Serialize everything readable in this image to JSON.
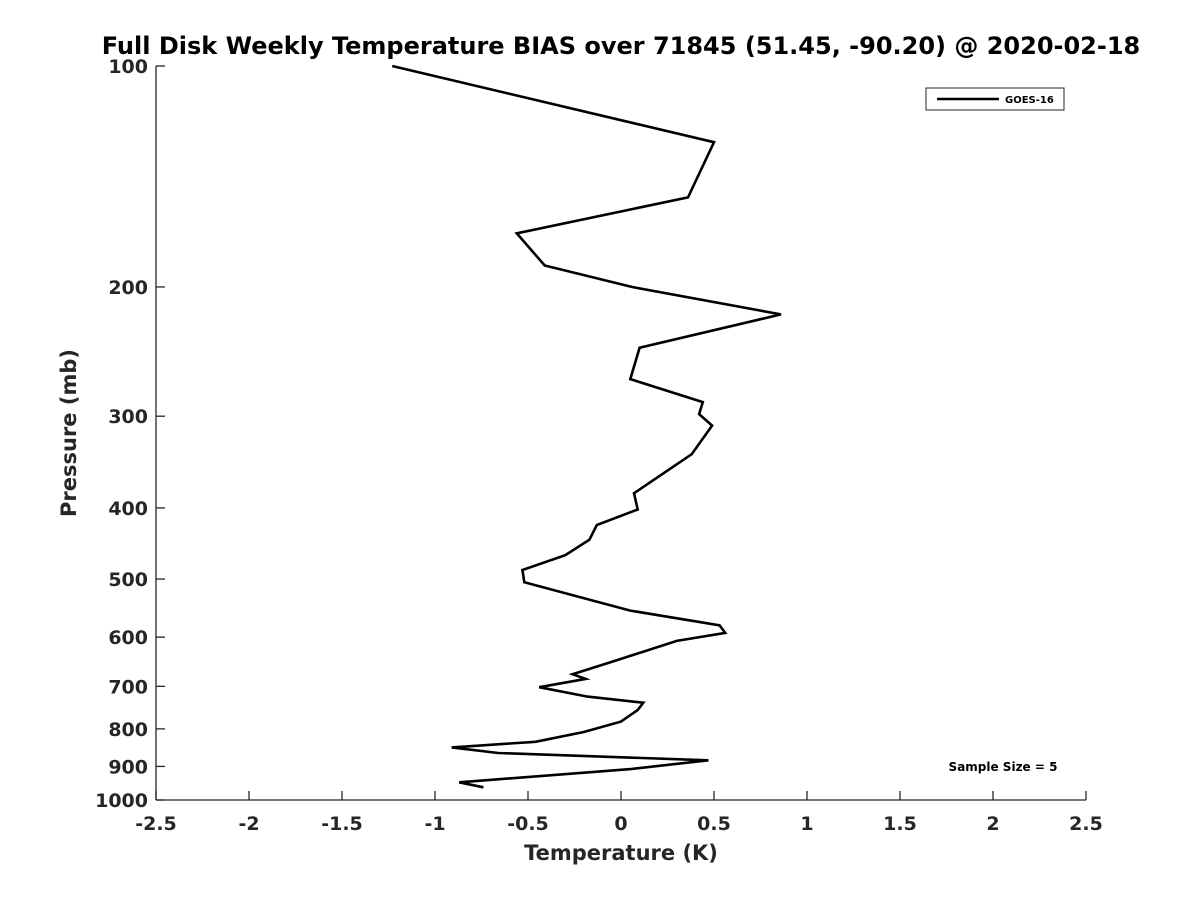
{
  "chart_data": {
    "type": "line",
    "title": "Full Disk Weekly Temperature BIAS over 71845 (51.45, -90.20) @ 2020-02-18",
    "xlabel": "Temperature (K)",
    "ylabel": "Pressure (mb)",
    "xlim": [
      -2.5,
      2.5
    ],
    "ylim": [
      100,
      1000
    ],
    "y_scale": "log",
    "y_reversed": true,
    "x_ticks": [
      -2.5,
      -2,
      -1.5,
      -1,
      -0.5,
      0,
      0.5,
      1,
      1.5,
      2,
      2.5
    ],
    "x_tick_labels": [
      "-2.5",
      "-2",
      "-1.5",
      "-1",
      "-0.5",
      "0",
      "0.5",
      "1",
      "1.5",
      "2",
      "2.5"
    ],
    "y_ticks": [
      100,
      200,
      300,
      400,
      500,
      600,
      700,
      800,
      900,
      1000
    ],
    "y_tick_labels": [
      "100",
      "200",
      "300",
      "400",
      "500",
      "600",
      "700",
      "800",
      "900",
      "1000"
    ],
    "grid": false,
    "legend_position": "top-right",
    "annotation": "Sample Size = 5",
    "series": [
      {
        "name": "GOES-16",
        "color": "#000000",
        "points": [
          {
            "x": -1.23,
            "p": 100
          },
          {
            "x": 0.5,
            "p": 127
          },
          {
            "x": 0.36,
            "p": 151
          },
          {
            "x": -0.56,
            "p": 169
          },
          {
            "x": -0.41,
            "p": 187
          },
          {
            "x": 0.06,
            "p": 200
          },
          {
            "x": 0.86,
            "p": 218
          },
          {
            "x": 0.1,
            "p": 242
          },
          {
            "x": 0.05,
            "p": 267
          },
          {
            "x": 0.44,
            "p": 287
          },
          {
            "x": 0.42,
            "p": 298
          },
          {
            "x": 0.49,
            "p": 309
          },
          {
            "x": 0.38,
            "p": 338
          },
          {
            "x": 0.07,
            "p": 382
          },
          {
            "x": 0.09,
            "p": 402
          },
          {
            "x": -0.13,
            "p": 422
          },
          {
            "x": -0.17,
            "p": 442
          },
          {
            "x": -0.3,
            "p": 464
          },
          {
            "x": -0.53,
            "p": 486
          },
          {
            "x": -0.52,
            "p": 505
          },
          {
            "x": 0.05,
            "p": 552
          },
          {
            "x": 0.53,
            "p": 578
          },
          {
            "x": 0.56,
            "p": 592
          },
          {
            "x": 0.3,
            "p": 607
          },
          {
            "x": -0.04,
            "p": 647
          },
          {
            "x": -0.26,
            "p": 674
          },
          {
            "x": -0.19,
            "p": 684
          },
          {
            "x": -0.44,
            "p": 702
          },
          {
            "x": -0.18,
            "p": 723
          },
          {
            "x": 0.12,
            "p": 737
          },
          {
            "x": 0.09,
            "p": 754
          },
          {
            "x": 0,
            "p": 782
          },
          {
            "x": -0.2,
            "p": 808
          },
          {
            "x": -0.46,
            "p": 833
          },
          {
            "x": -0.91,
            "p": 848
          },
          {
            "x": -0.66,
            "p": 863
          },
          {
            "x": 0.47,
            "p": 883
          },
          {
            "x": 0.06,
            "p": 907
          },
          {
            "x": -0.87,
            "p": 946
          },
          {
            "x": -0.74,
            "p": 961
          }
        ]
      }
    ]
  }
}
